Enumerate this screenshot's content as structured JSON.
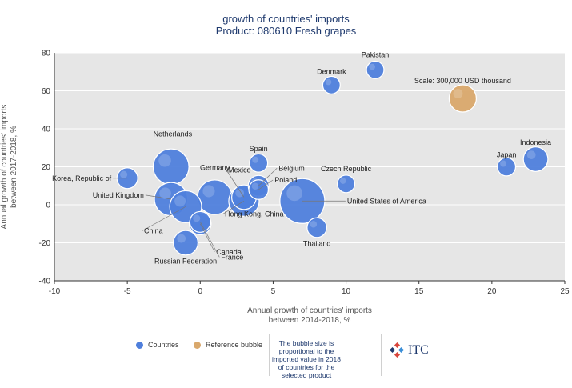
{
  "title_line1": "growth of countries' imports",
  "title_line2": "Product: 080610 Fresh grapes",
  "legend": {
    "countries": "Countries",
    "reference": "Reference bubble",
    "note": "The bubble size is proportional to the imported value in 2018 of countries for the selected product",
    "logo": "ITC"
  },
  "colors": {
    "bubble": "#4f7fdc",
    "reference": "#d9a86c",
    "plot_bg": "#e6e6e6"
  },
  "chart_data": {
    "type": "scatter",
    "xlabel": "Annual growth of countries' imports between 2014-2018, %",
    "ylabel": "Annual growth of countries' imports between 2017-2018, %",
    "xlim": [
      -10,
      25
    ],
    "ylim": [
      -40,
      80
    ],
    "xticks": [
      -10,
      -5,
      0,
      5,
      10,
      15,
      20,
      25
    ],
    "yticks": [
      -40,
      -20,
      0,
      20,
      40,
      60,
      80
    ],
    "grid": "horizontal",
    "points": [
      {
        "label": "Pakistan",
        "x": 12,
        "y": 71,
        "size": 0.05
      },
      {
        "label": "Denmark",
        "x": 9,
        "y": 63,
        "size": 0.05
      },
      {
        "label": "Scale: 300,000 USD thousand",
        "x": 18,
        "y": 56,
        "size": 0.25,
        "reference": true
      },
      {
        "label": "Indonesia",
        "x": 23,
        "y": 24,
        "size": 0.18
      },
      {
        "label": "Japan",
        "x": 21,
        "y": 20,
        "size": 0.06
      },
      {
        "label": "Netherlands",
        "x": -2,
        "y": 20,
        "size": 0.55
      },
      {
        "label": "Spain",
        "x": 4,
        "y": 22,
        "size": 0.06
      },
      {
        "label": "Belgium",
        "x": 4,
        "y": 10,
        "size": 0.1
      },
      {
        "label": "Poland",
        "x": 4,
        "y": 8,
        "size": 0.08
      },
      {
        "label": "Mexico",
        "x": 3,
        "y": 4,
        "size": 0.18
      },
      {
        "label": "Korea, Republic of",
        "x": -5,
        "y": 14,
        "size": 0.1
      },
      {
        "label": "Czech Republic",
        "x": 10,
        "y": 11,
        "size": 0.05
      },
      {
        "label": "Germany",
        "x": 1,
        "y": 4,
        "size": 0.5
      },
      {
        "label": "United Kingdom",
        "x": -2,
        "y": 3,
        "size": 0.45
      },
      {
        "label": "Hong Kong, China",
        "x": 3,
        "y": 2,
        "size": 0.35
      },
      {
        "label": "United States of America",
        "x": 7,
        "y": 2,
        "size": 1.0
      },
      {
        "label": "China",
        "x": -1,
        "y": -1,
        "size": 0.4
      },
      {
        "label": "Canada",
        "x": 0,
        "y": -10,
        "size": 0.12
      },
      {
        "label": "France",
        "x": 0,
        "y": -9,
        "size": 0.1
      },
      {
        "label": "Thailand",
        "x": 8,
        "y": -12,
        "size": 0.08
      },
      {
        "label": "Russian Federation",
        "x": -1,
        "y": -20,
        "size": 0.18
      }
    ]
  }
}
